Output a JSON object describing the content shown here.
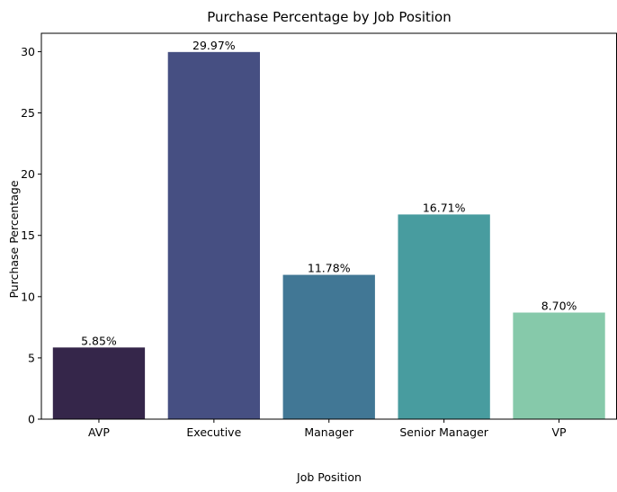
{
  "chart_data": {
    "type": "bar",
    "title": "Purchase Percentage by Job Position",
    "xlabel": "Job Position",
    "ylabel": "Purchase Percentage",
    "categories": [
      "AVP",
      "Executive",
      "Manager",
      "Senior Manager",
      "VP"
    ],
    "values": [
      5.85,
      29.97,
      11.78,
      16.71,
      8.7
    ],
    "data_labels": [
      "5.85%",
      "29.97%",
      "11.78%",
      "16.71%",
      "8.70%"
    ],
    "colors": [
      "#35264a",
      "#464f82",
      "#417795",
      "#489c9f",
      "#86c9aa"
    ],
    "ylim": [
      0,
      31.5
    ],
    "yticks": [
      0,
      5,
      10,
      15,
      20,
      25,
      30
    ],
    "grid": false,
    "legend": "none"
  }
}
